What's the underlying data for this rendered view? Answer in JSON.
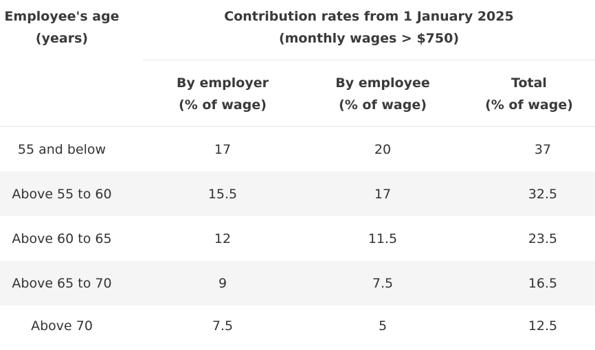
{
  "header": {
    "age_label": "Employee's age\n(years)",
    "group_label": "Contribution rates from 1 January 2025\n(monthly wages > $750)",
    "columns": [
      "By employer\n(% of wage)",
      "By employee\n(% of wage)",
      "Total\n(% of wage)"
    ]
  },
  "rows": [
    {
      "age": "55 and below",
      "employer": "17",
      "employee": "20",
      "total": "37"
    },
    {
      "age": "Above 55 to 60",
      "employer": "15.5",
      "employee": "17",
      "total": "32.5"
    },
    {
      "age": "Above 60 to 65",
      "employer": "12",
      "employee": "11.5",
      "total": "23.5"
    },
    {
      "age": "Above 65 to 70",
      "employer": "9",
      "employee": "7.5",
      "total": "16.5"
    },
    {
      "age": "Above 70",
      "employer": "7.5",
      "employee": "5",
      "total": "12.5"
    }
  ]
}
